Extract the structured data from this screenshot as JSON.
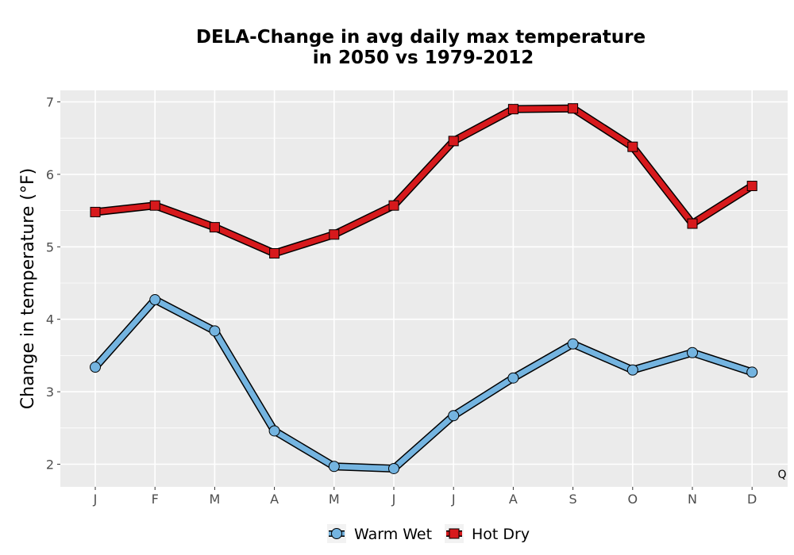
{
  "chart_data": {
    "type": "line",
    "title_lines": [
      "DELA-Change in avg daily max temperature",
      "in 2050 vs 1979-2012"
    ],
    "xlabel": "",
    "ylabel": "Change in temperature (°F)",
    "categories": [
      "J",
      "F",
      "M",
      "A",
      "M",
      "J",
      "J",
      "A",
      "S",
      "O",
      "N",
      "D"
    ],
    "y_ticks": [
      2,
      3,
      4,
      5,
      6,
      7
    ],
    "ylim": [
      1.69,
      7.15
    ],
    "grid": true,
    "legend_position": "bottom",
    "annotation": "Q",
    "series": [
      {
        "name": "Warm Wet",
        "color": "#74b4e0",
        "marker": "circle",
        "values": [
          3.34,
          4.27,
          3.84,
          2.46,
          1.97,
          1.94,
          2.67,
          3.19,
          3.66,
          3.3,
          3.54,
          3.27
        ]
      },
      {
        "name": "Hot Dry",
        "color": "#d7191c",
        "marker": "square",
        "values": [
          5.48,
          5.57,
          5.27,
          4.91,
          5.17,
          5.57,
          6.46,
          6.9,
          6.91,
          6.38,
          5.32,
          5.84
        ]
      }
    ]
  }
}
